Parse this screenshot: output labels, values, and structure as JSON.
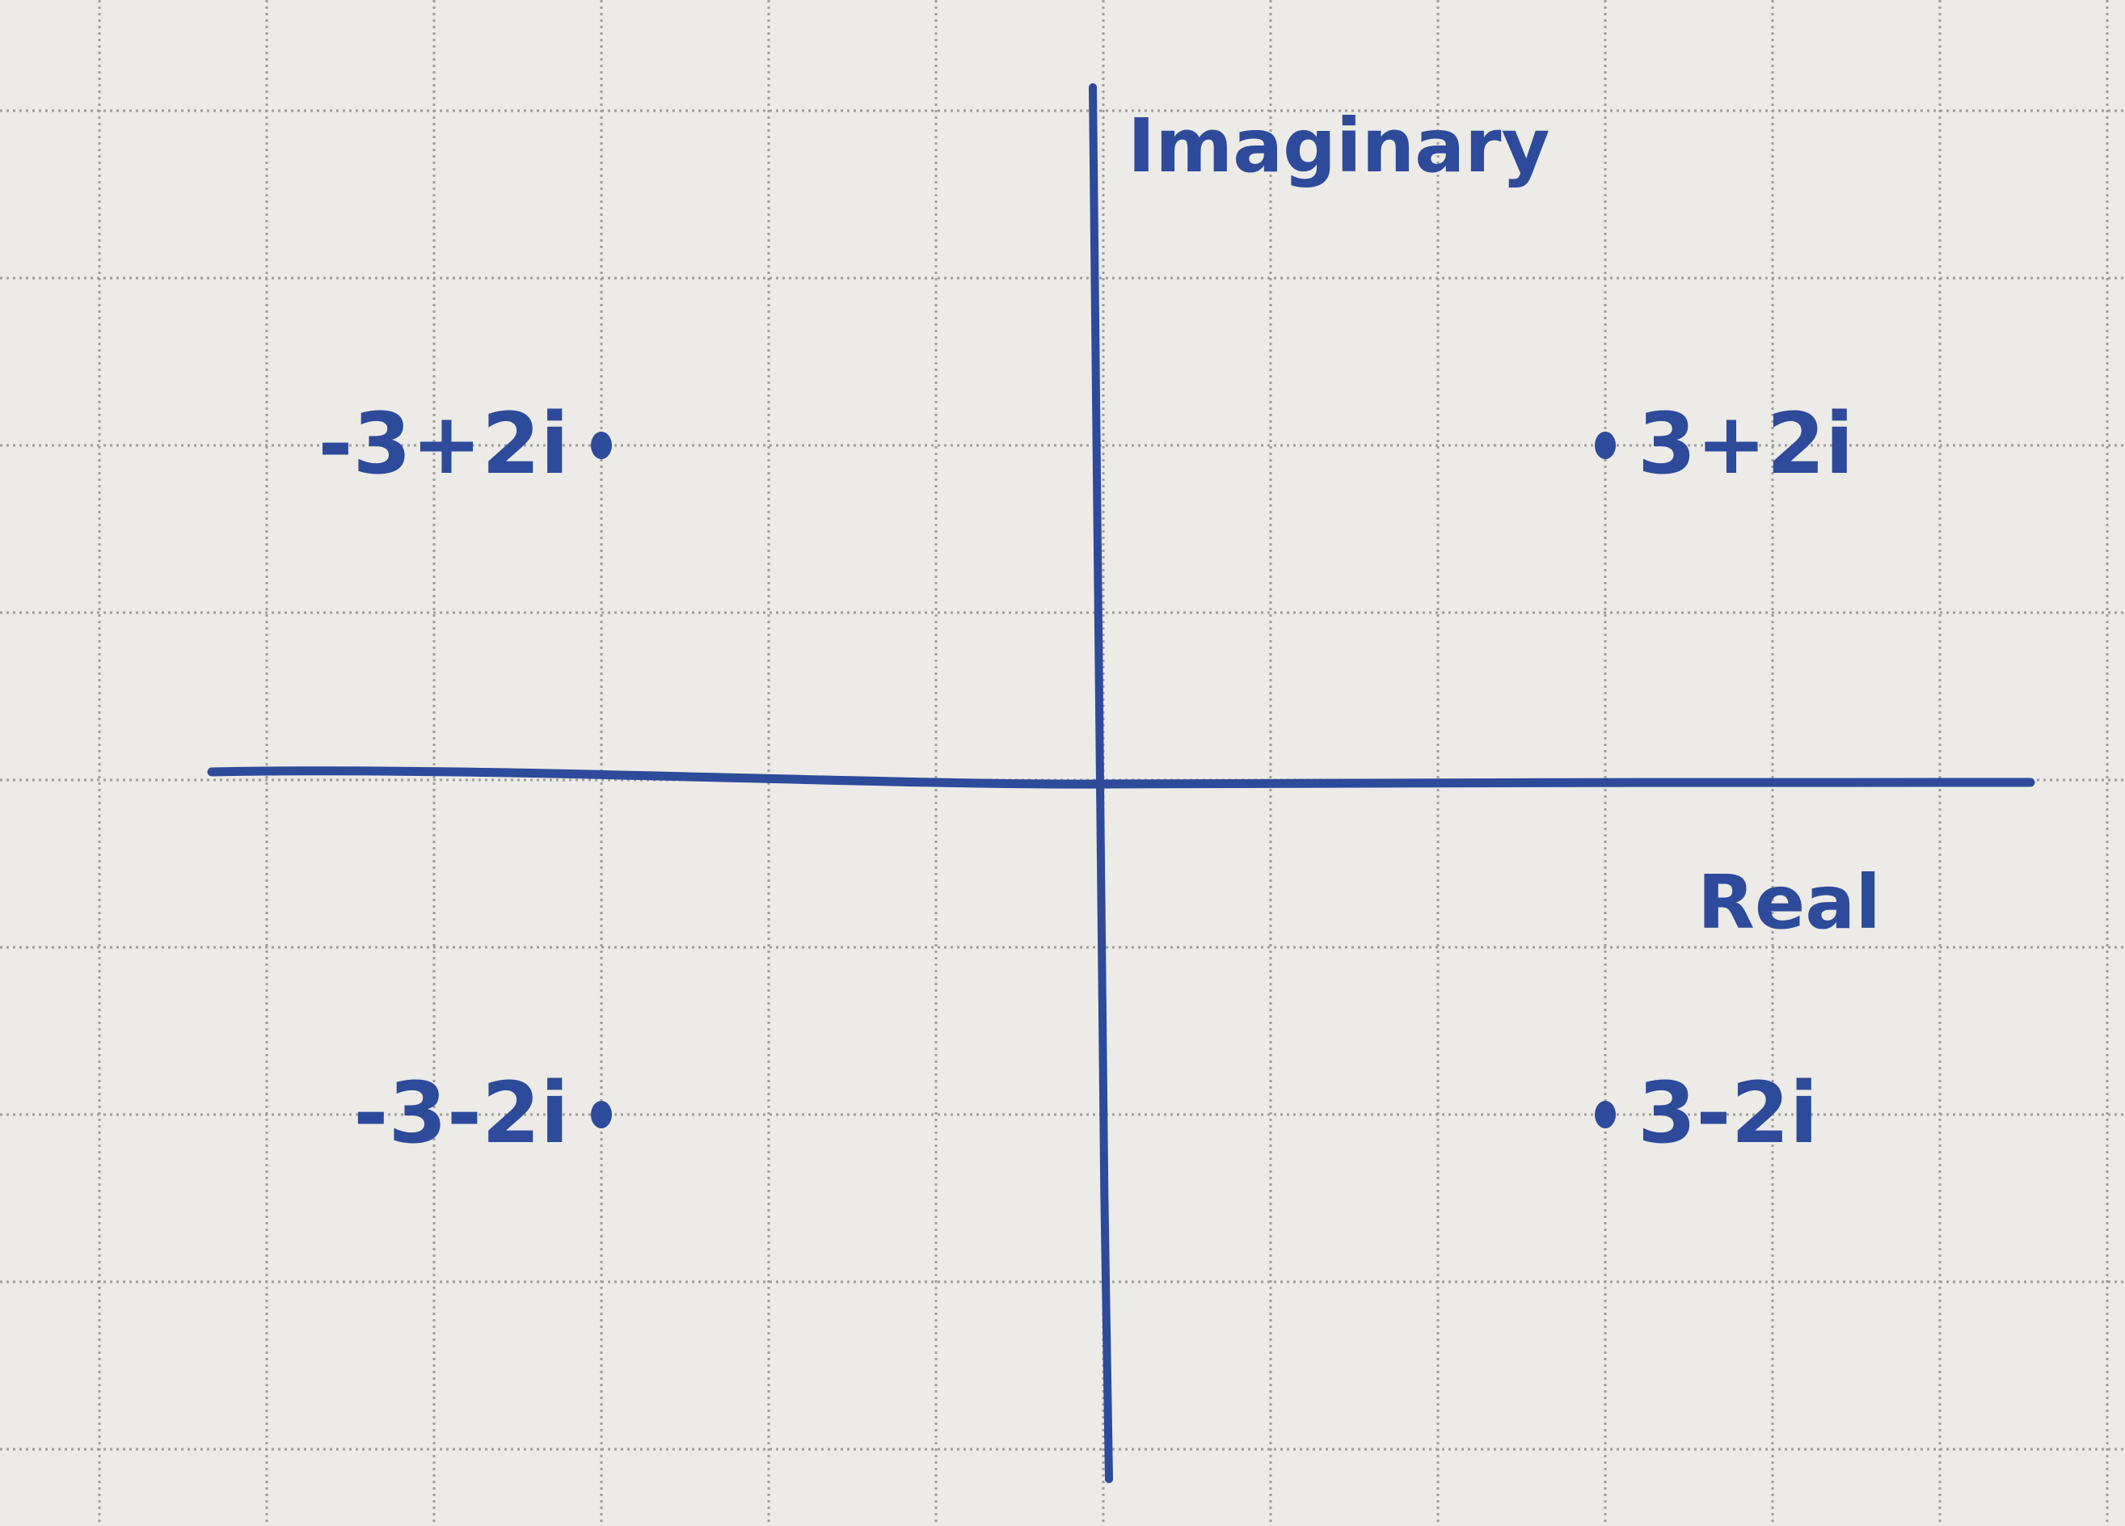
{
  "chart_data": {
    "type": "scatter",
    "title": "",
    "xlabel": "Real",
    "ylabel": "Imaginary",
    "xlim": [
      -5,
      5
    ],
    "ylim": [
      -4,
      4
    ],
    "grid": true,
    "points": [
      {
        "x": -3,
        "y": 2,
        "label": "-3+2i",
        "label_side": "left"
      },
      {
        "x": 3,
        "y": 2,
        "label": "3+2i",
        "label_side": "right"
      },
      {
        "x": -3,
        "y": -2,
        "label": "-3-2i",
        "label_side": "left"
      },
      {
        "x": 3,
        "y": -2,
        "label": "3-2i",
        "label_side": "right"
      }
    ]
  },
  "colors": {
    "paper": "#ecebe7",
    "grid": "#9e9e9e",
    "ink": "#2e4a9a"
  }
}
